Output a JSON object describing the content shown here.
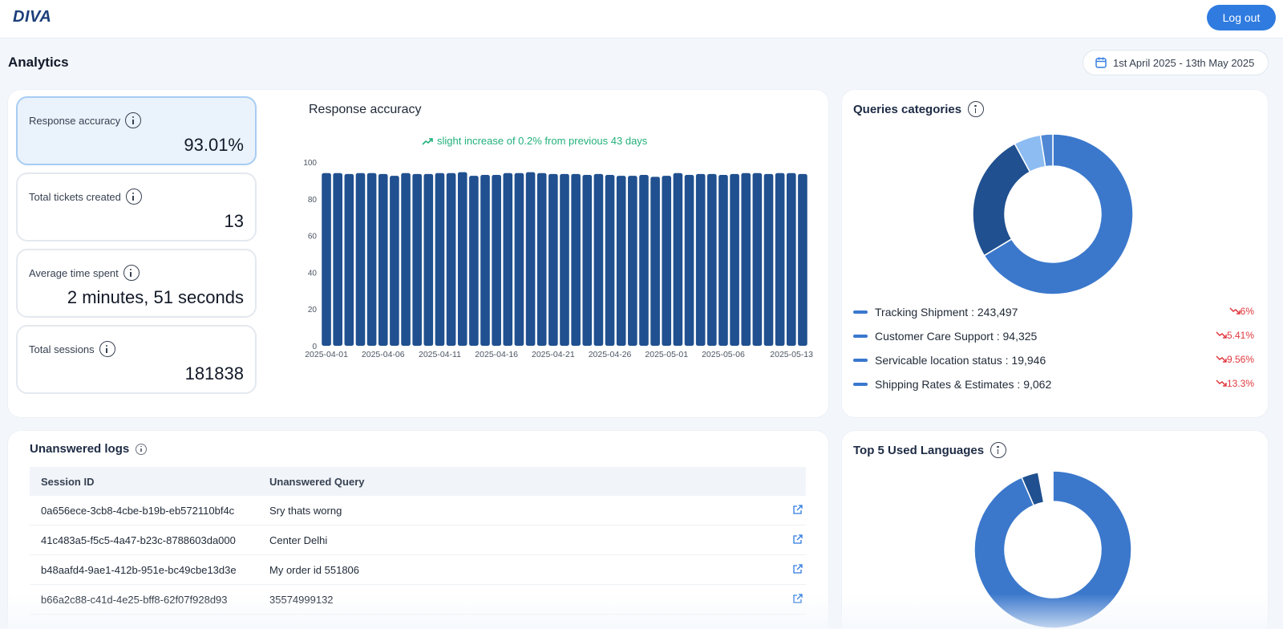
{
  "app": {
    "logo": "DIVA",
    "logout_label": "Log out"
  },
  "page": {
    "title": "Analytics",
    "date_range": "1st April 2025 - 13th May 2025"
  },
  "metrics": [
    {
      "label": "Response accuracy",
      "value": "93.01%"
    },
    {
      "label": "Total tickets created",
      "value": "13"
    },
    {
      "label": "Average time spent",
      "value": "2 minutes, 51 seconds"
    },
    {
      "label": "Total sessions",
      "value": "181838"
    }
  ],
  "accuracy_chart": {
    "title": "Response accuracy",
    "trend": "slight increase of 0.2% from previous 43 days"
  },
  "chart_data": [
    {
      "type": "bar",
      "title": "Response accuracy",
      "x": [
        "2025-04-01",
        "2025-04-02",
        "2025-04-03",
        "2025-04-04",
        "2025-04-05",
        "2025-04-06",
        "2025-04-07",
        "2025-04-08",
        "2025-04-09",
        "2025-04-10",
        "2025-04-11",
        "2025-04-12",
        "2025-04-13",
        "2025-04-14",
        "2025-04-15",
        "2025-04-16",
        "2025-04-17",
        "2025-04-18",
        "2025-04-19",
        "2025-04-20",
        "2025-04-21",
        "2025-04-22",
        "2025-04-23",
        "2025-04-24",
        "2025-04-25",
        "2025-04-26",
        "2025-04-27",
        "2025-04-28",
        "2025-04-29",
        "2025-04-30",
        "2025-05-01",
        "2025-05-02",
        "2025-05-03",
        "2025-05-04",
        "2025-05-05",
        "2025-05-06",
        "2025-05-07",
        "2025-05-08",
        "2025-05-09",
        "2025-05-10",
        "2025-05-11",
        "2025-05-12",
        "2025-05-13"
      ],
      "values": [
        94,
        94,
        93.5,
        94,
        94,
        93.5,
        92.5,
        94,
        93.5,
        93.5,
        94,
        94,
        94.5,
        92.5,
        93,
        93,
        94,
        94,
        94.5,
        94,
        93.5,
        93.5,
        93.5,
        93,
        93.5,
        93,
        92.5,
        92.5,
        93,
        92,
        92.5,
        94,
        93,
        93.5,
        93.5,
        93,
        93.5,
        94,
        94,
        93.5,
        94,
        94,
        93.5
      ],
      "tick_labels": [
        "2025-04-01",
        "2025-04-06",
        "2025-04-11",
        "2025-04-16",
        "2025-04-21",
        "2025-04-26",
        "2025-05-01",
        "2025-05-06",
        "2025-05-13"
      ],
      "yticks": [
        0,
        20,
        40,
        60,
        80,
        100
      ],
      "ylim": [
        0,
        100
      ],
      "xlabel": "",
      "ylabel": "",
      "grid": false,
      "color": "#20508f"
    },
    {
      "type": "pie",
      "title": "Queries categories",
      "labels": [
        "Tracking Shipment",
        "Customer Care Support",
        "Servicable location status",
        "Shipping Rates & Estimates"
      ],
      "values": [
        243497,
        94325,
        19946,
        9062
      ],
      "colors": [
        "#3b78cc",
        "#20508f",
        "#8cbcf2",
        "#4f87d4"
      ],
      "donut": true
    },
    {
      "type": "pie",
      "title": "Top 5 Used Languages",
      "values": [
        93.5,
        3.5,
        3.0
      ],
      "colors": [
        "#3b78cc",
        "#20508f",
        "#ffffff"
      ],
      "donut": true
    }
  ],
  "queries": {
    "title": "Queries categories",
    "items": [
      {
        "text": "Tracking Shipment : 243,497",
        "change": "6%"
      },
      {
        "text": "Customer Care Support : 94,325",
        "change": "5.41%"
      },
      {
        "text": "Servicable location status : 19,946",
        "change": "9.56%"
      },
      {
        "text": "Shipping Rates & Estimates : 9,062",
        "change": "13.3%"
      }
    ]
  },
  "logs": {
    "title": "Unanswered logs",
    "columns": [
      "Session ID",
      "Unanswered Query"
    ],
    "rows": [
      {
        "session_id": "0a656ece-3cb8-4cbe-b19b-eb572110bf4c",
        "query": "Sry thats worng"
      },
      {
        "session_id": "41c483a5-f5c5-4a47-b23c-8788603da000",
        "query": "Center Delhi"
      },
      {
        "session_id": "b48aafd4-9ae1-412b-951e-bc49cbe13d3e",
        "query": "My order id 551806"
      },
      {
        "session_id": "b66a2c88-c41d-4e25-bff8-62f07f928d93",
        "query": "35574999132"
      }
    ]
  },
  "languages": {
    "title": "Top 5 Used Languages"
  },
  "colors": {
    "accent": "#2f7be0",
    "bar": "#20508f",
    "trend_up": "#22b07d",
    "trend_down": "#e0383e"
  },
  "icons": {
    "date": "calendar-icon",
    "info": "info-icon",
    "trend_up": "trending-up-icon",
    "trend_down": "trending-down-icon",
    "link": "external-link-icon"
  }
}
